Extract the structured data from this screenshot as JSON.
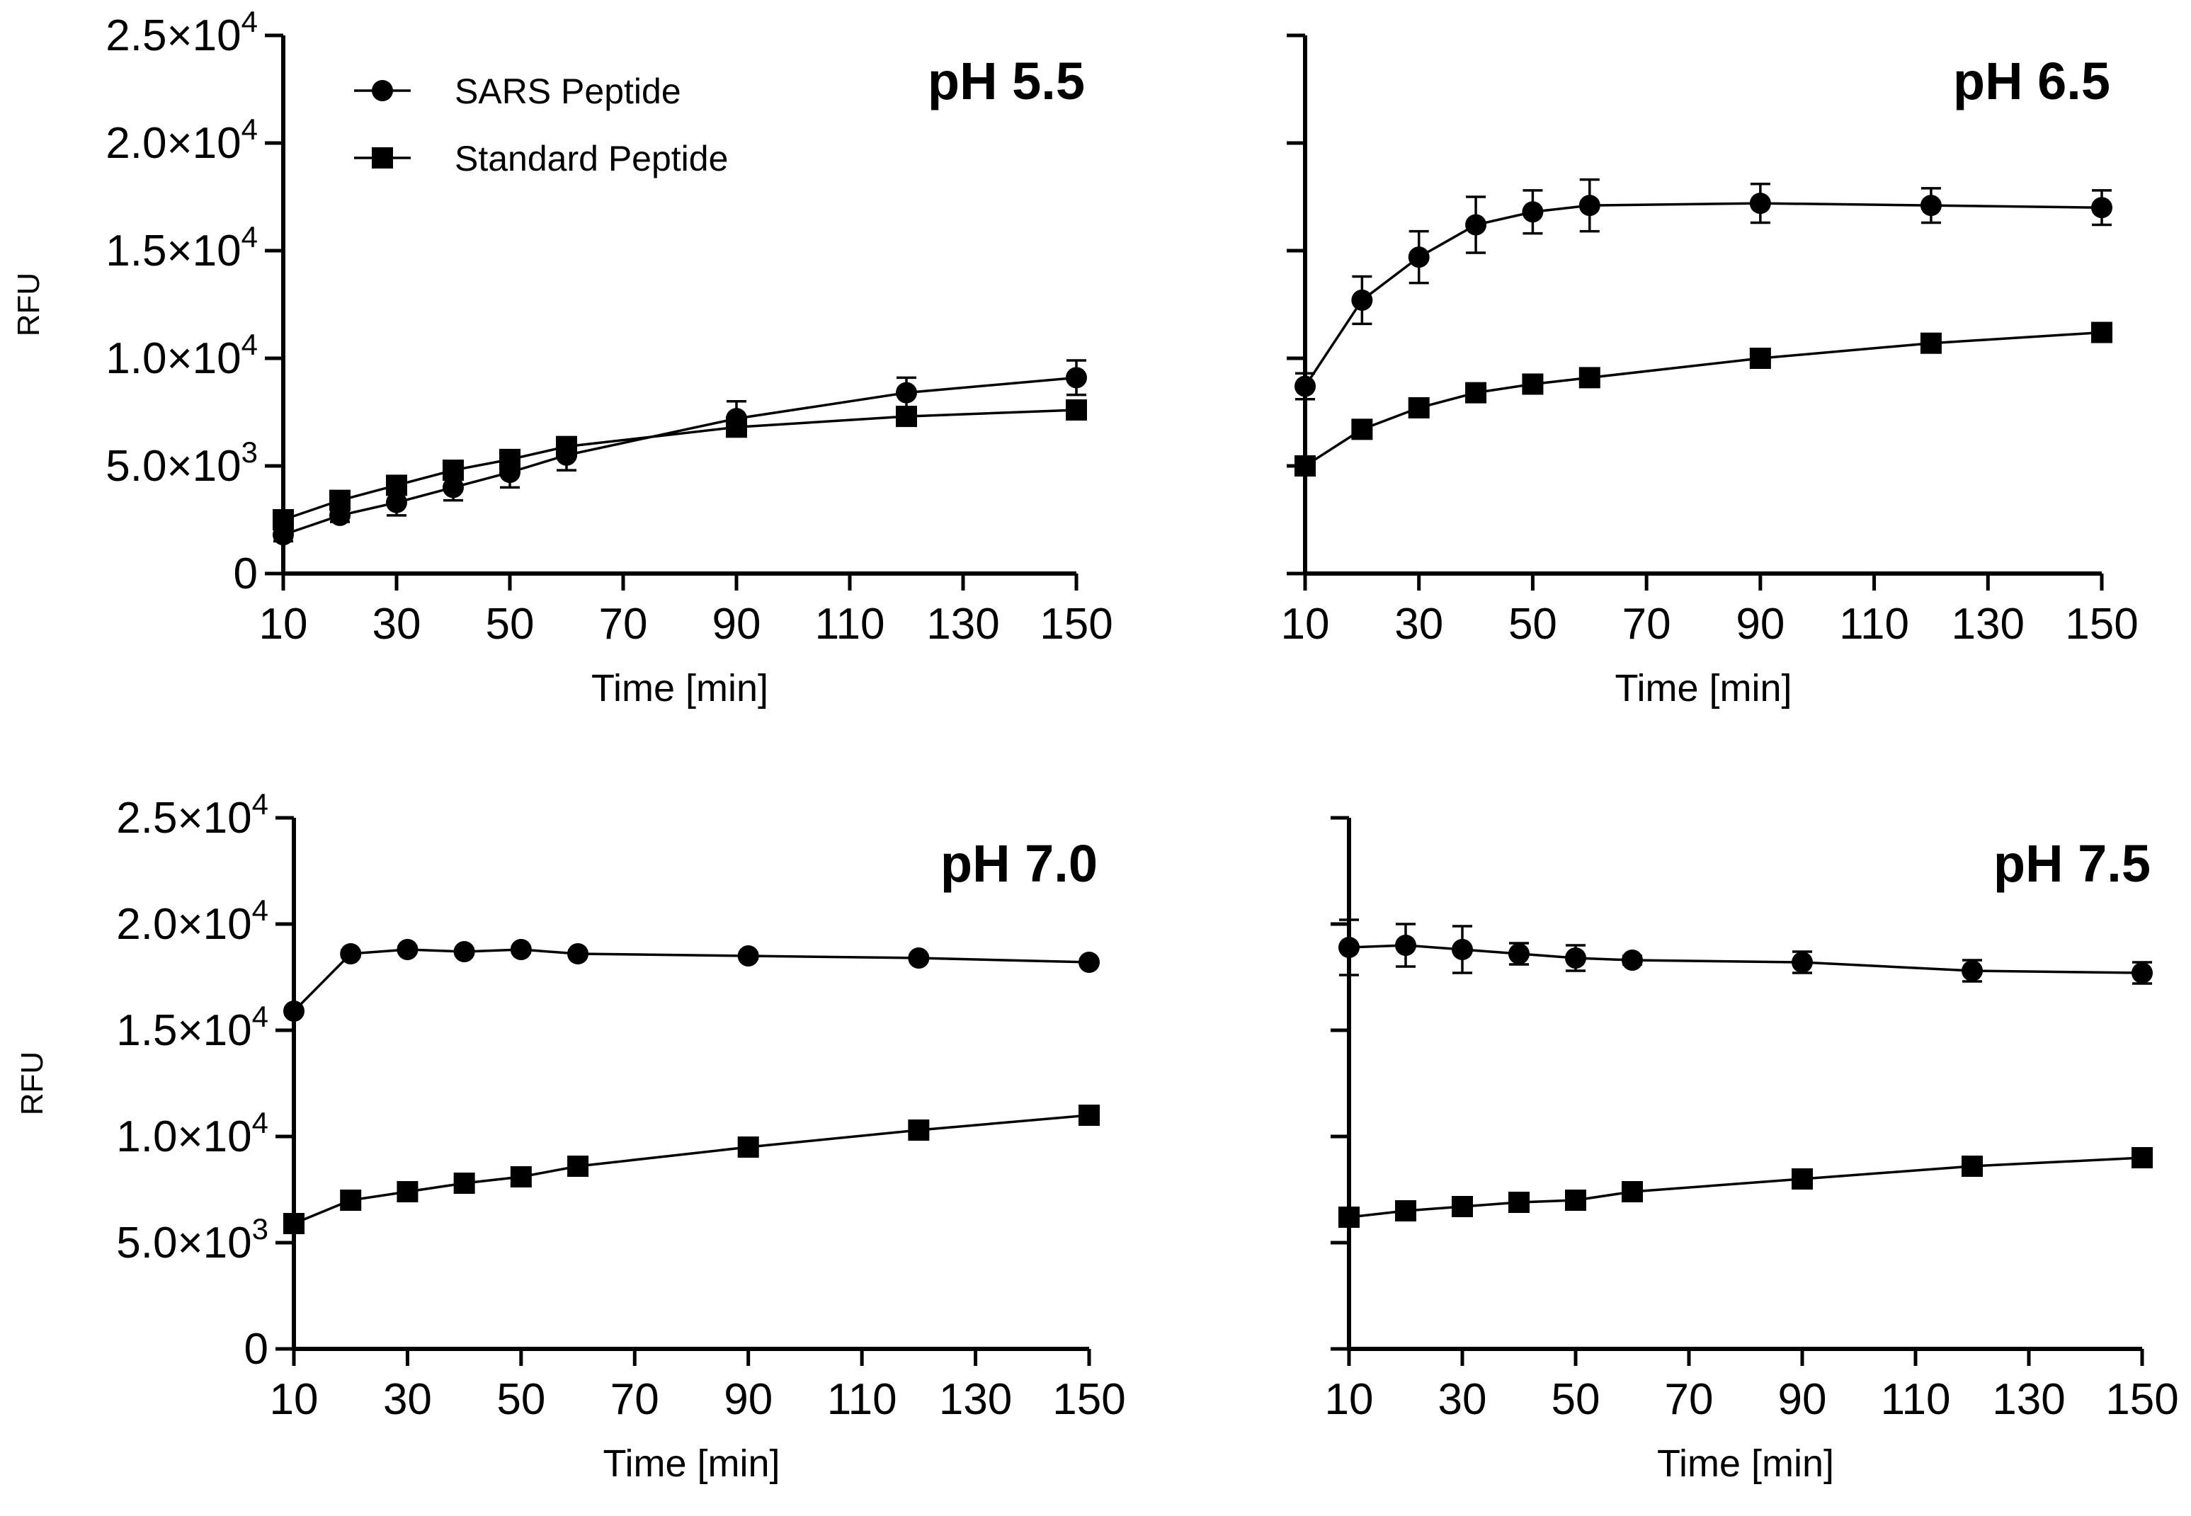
{
  "chart_data": [
    {
      "type": "line",
      "title": "pH 5.5",
      "xlabel": "Time [min]",
      "ylabel": "RFU",
      "xlim": [
        10,
        150
      ],
      "ylim": [
        0,
        25000
      ],
      "x_ticks": [
        "10",
        "30",
        "50",
        "70",
        "90",
        "110",
        "130",
        "150"
      ],
      "y_ticks": [
        "0",
        "5.0×10|3",
        "1.0×10|4",
        "1.5×10|4",
        "2.0×10|4",
        "2.5×10|4"
      ],
      "show_y_tick_labels": true,
      "legend": [
        {
          "marker": "circle",
          "label": "SARS Peptide"
        },
        {
          "marker": "square",
          "label": "Standard Peptide"
        }
      ],
      "x": [
        10,
        20,
        30,
        40,
        50,
        60,
        90,
        120,
        150
      ],
      "series": [
        {
          "name": "SARS Peptide",
          "marker": "circle",
          "values": [
            1800,
            2700,
            3300,
            4000,
            4700,
            5500,
            7200,
            8400,
            9100
          ],
          "errors": [
            300,
            300,
            600,
            600,
            700,
            700,
            800,
            700,
            800
          ]
        },
        {
          "name": "Standard Peptide",
          "marker": "square",
          "values": [
            2500,
            3400,
            4100,
            4800,
            5300,
            5900,
            6800,
            7300,
            7600
          ],
          "errors": [
            150,
            150,
            150,
            150,
            150,
            150,
            150,
            150,
            150
          ]
        }
      ]
    },
    {
      "type": "line",
      "title": "pH 6.5",
      "xlabel": "Time [min]",
      "ylabel": "",
      "xlim": [
        10,
        150
      ],
      "ylim": [
        0,
        25000
      ],
      "x_ticks": [
        "10",
        "30",
        "50",
        "70",
        "90",
        "110",
        "130",
        "150"
      ],
      "y_ticks": [
        "0",
        "5.0×10|3",
        "1.0×10|4",
        "1.5×10|4",
        "2.0×10|4",
        "2.5×10|4"
      ],
      "show_y_tick_labels": false,
      "x": [
        10,
        20,
        30,
        40,
        50,
        60,
        90,
        120,
        150
      ],
      "series": [
        {
          "name": "SARS Peptide",
          "marker": "circle",
          "values": [
            8700,
            12700,
            14700,
            16200,
            16800,
            17100,
            17200,
            17100,
            17000
          ],
          "errors": [
            600,
            1100,
            1200,
            1300,
            1000,
            1200,
            900,
            800,
            800
          ]
        },
        {
          "name": "Standard Peptide",
          "marker": "square",
          "values": [
            5000,
            6700,
            7700,
            8400,
            8800,
            9100,
            10000,
            10700,
            11200
          ],
          "errors": [
            150,
            150,
            150,
            150,
            150,
            150,
            150,
            150,
            150
          ]
        }
      ]
    },
    {
      "type": "line",
      "title": "pH 7.0",
      "xlabel": "Time [min]",
      "ylabel": "RFU",
      "xlim": [
        10,
        150
      ],
      "ylim": [
        0,
        25000
      ],
      "x_ticks": [
        "10",
        "30",
        "50",
        "70",
        "90",
        "110",
        "130",
        "150"
      ],
      "y_ticks": [
        "0",
        "5.0×10|3",
        "1.0×10|4",
        "1.5×10|4",
        "2.0×10|4",
        "2.5×10|4"
      ],
      "show_y_tick_labels": true,
      "x": [
        10,
        20,
        30,
        40,
        50,
        60,
        90,
        120,
        150
      ],
      "series": [
        {
          "name": "SARS Peptide",
          "marker": "circle",
          "values": [
            15900,
            18600,
            18800,
            18700,
            18800,
            18600,
            18500,
            18400,
            18200
          ],
          "errors": [
            150,
            150,
            150,
            150,
            150,
            150,
            150,
            150,
            150
          ]
        },
        {
          "name": "Standard Peptide",
          "marker": "square",
          "values": [
            5900,
            7000,
            7400,
            7800,
            8100,
            8600,
            9500,
            10300,
            11000
          ],
          "errors": [
            150,
            150,
            150,
            150,
            150,
            150,
            150,
            150,
            150
          ]
        }
      ]
    },
    {
      "type": "line",
      "title": "pH 7.5",
      "xlabel": "Time [min]",
      "ylabel": "",
      "xlim": [
        10,
        150
      ],
      "ylim": [
        0,
        25000
      ],
      "x_ticks": [
        "10",
        "30",
        "50",
        "70",
        "90",
        "110",
        "130",
        "150"
      ],
      "y_ticks": [
        "0",
        "5.0×10|3",
        "1.0×10|4",
        "1.5×10|4",
        "2.0×10|4",
        "2.5×10|4"
      ],
      "show_y_tick_labels": false,
      "x": [
        10,
        20,
        30,
        40,
        50,
        60,
        90,
        120,
        150
      ],
      "series": [
        {
          "name": "SARS Peptide",
          "marker": "circle",
          "values": [
            18900,
            19000,
            18800,
            18600,
            18400,
            18300,
            18200,
            17800,
            17700
          ],
          "errors": [
            1300,
            1000,
            1100,
            500,
            600,
            200,
            500,
            500,
            500
          ]
        },
        {
          "name": "Standard Peptide",
          "marker": "square",
          "values": [
            6200,
            6500,
            6700,
            6900,
            7000,
            7400,
            8000,
            8600,
            9000
          ],
          "errors": [
            150,
            150,
            150,
            150,
            150,
            150,
            150,
            150,
            150
          ]
        }
      ]
    }
  ]
}
